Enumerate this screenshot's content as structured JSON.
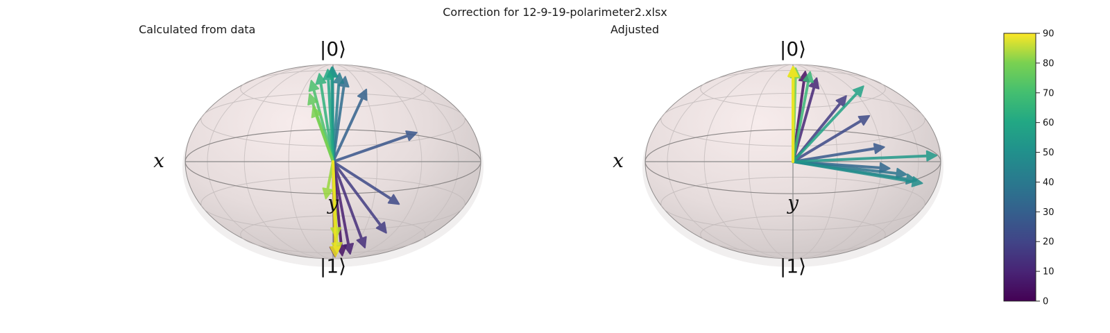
{
  "figure": {
    "title": "Correction for 12-9-19-polarimeter2.xlsx"
  },
  "chart_data": [
    {
      "type": "bloch-sphere",
      "title": "Calculated from data",
      "labels": {
        "top": "|0⟩",
        "bottom": "|1⟩",
        "x": "x",
        "y": "y"
      },
      "colorscale": "viridis",
      "color_range": [
        0,
        90
      ],
      "vectors": [
        {
          "az": 8,
          "el": -84,
          "v": 0
        },
        {
          "az": 18,
          "el": -78,
          "v": 4
        },
        {
          "az": 24,
          "el": -73,
          "v": 8
        },
        {
          "az": 28,
          "el": -62,
          "v": 12
        },
        {
          "az": 32,
          "el": -46,
          "v": 16
        },
        {
          "az": 30,
          "el": -24,
          "v": 20
        },
        {
          "az": 38,
          "el": 20,
          "v": 24
        },
        {
          "az": 22,
          "el": 52,
          "v": 28
        },
        {
          "az": 12,
          "el": 66,
          "v": 32
        },
        {
          "az": 8,
          "el": 71,
          "v": 38
        },
        {
          "az": -2,
          "el": 86,
          "v": 42
        },
        {
          "az": -6,
          "el": 85,
          "v": 48
        },
        {
          "az": -10,
          "el": 78,
          "v": 54
        },
        {
          "az": -16,
          "el": 70,
          "v": 58
        },
        {
          "az": -18,
          "el": 61,
          "v": 64
        },
        {
          "az": -14,
          "el": 48,
          "v": 68
        },
        {
          "az": -10,
          "el": 38,
          "v": 72
        },
        {
          "az": -3,
          "el": -20,
          "v": 76
        },
        {
          "az": 2,
          "el": -50,
          "v": 80
        },
        {
          "az": 5,
          "el": -70,
          "v": 84
        },
        {
          "az": 7,
          "el": -82,
          "v": 88
        }
      ]
    },
    {
      "type": "bloch-sphere",
      "title": "Adjusted",
      "labels": {
        "top": "|0⟩",
        "bottom": "|1⟩",
        "x": "x",
        "y": "y"
      },
      "colorscale": "viridis",
      "color_range": [
        0,
        90
      ],
      "vectors": [
        {
          "az": 18,
          "el": 74,
          "v": 4
        },
        {
          "az": 22,
          "el": 64,
          "v": 10
        },
        {
          "az": 32,
          "el": 46,
          "v": 16
        },
        {
          "az": 38,
          "el": 31,
          "v": 20
        },
        {
          "az": 40,
          "el": 11,
          "v": 25
        },
        {
          "az": 42,
          "el": -2,
          "v": 30
        },
        {
          "az": 52,
          "el": -6,
          "v": 35
        },
        {
          "az": 60,
          "el": -10,
          "v": 40
        },
        {
          "az": 66,
          "el": -12,
          "v": 44
        },
        {
          "az": 84,
          "el": 4,
          "v": 48
        },
        {
          "az": 56,
          "el": 54,
          "v": 52
        },
        {
          "az": 24,
          "el": 73,
          "v": 60
        },
        {
          "az": 8,
          "el": 82,
          "v": 70
        },
        {
          "az": 4,
          "el": 86,
          "v": 78
        },
        {
          "az": 2,
          "el": 88,
          "v": 84
        },
        {
          "az": 0,
          "el": 89,
          "v": 88
        }
      ]
    }
  ],
  "colorbar": {
    "ticks": [
      "0",
      "10",
      "20",
      "30",
      "40",
      "50",
      "60",
      "70",
      "80",
      "90"
    ],
    "range": [
      0,
      90
    ]
  }
}
